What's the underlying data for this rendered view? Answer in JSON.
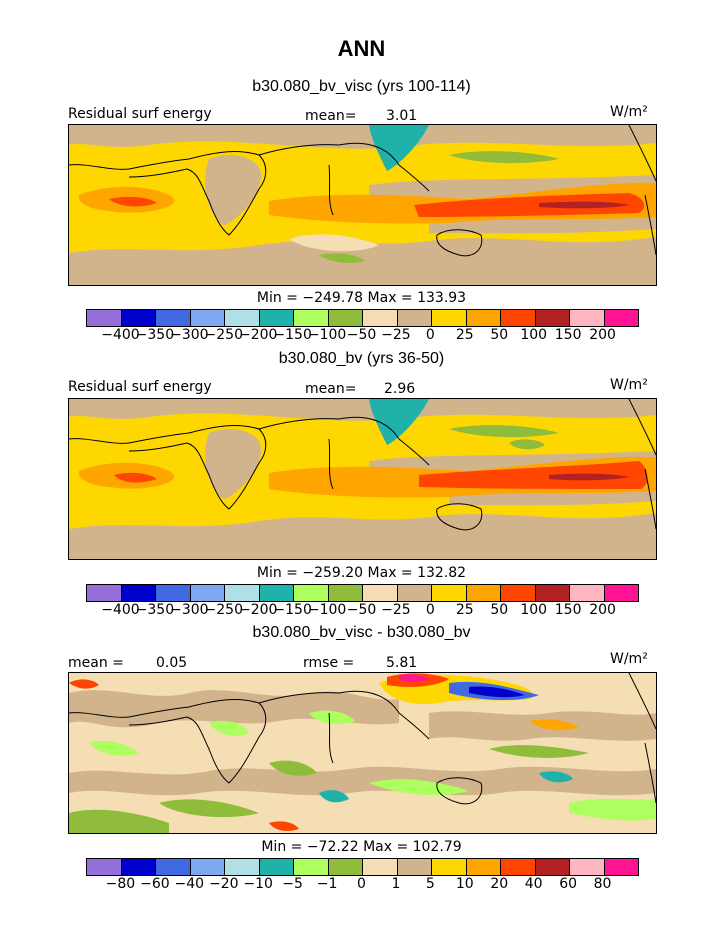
{
  "title": "ANN",
  "chart_data": [
    {
      "type": "heatmap",
      "title": "b30.080_bv_visc (yrs 100-114)",
      "field_label": "Residual surf energy",
      "units_label": "W/m²",
      "mean_label": "mean=",
      "mean_value": "3.01",
      "min_max_text": "Min = −249.78 Max = 133.93",
      "min": -249.78,
      "max": 133.93,
      "mean": 3.01,
      "colorbar": {
        "colors": [
          "#9370db",
          "#0000cd",
          "#4169e1",
          "#7fa8f0",
          "#aee0e6",
          "#20b2aa",
          "#adff5f",
          "#8fbc3b",
          "#f5deb3",
          "#d2b48c",
          "#ffd700",
          "#ffa500",
          "#ff4500",
          "#b22222",
          "#ffb6c1",
          "#ff1493"
        ],
        "tick_labels": [
          "−400",
          "−350",
          "−300",
          "−250",
          "−200",
          "−150",
          "−100",
          "−50",
          "−25",
          "0",
          "25",
          "50",
          "100",
          "150",
          "200"
        ]
      }
    },
    {
      "type": "heatmap",
      "title": "b30.080_bv (yrs 36-50)",
      "field_label": "Residual surf energy",
      "units_label": "W/m²",
      "mean_label": "mean=",
      "mean_value": "2.96",
      "min_max_text": "Min = −259.20 Max = 132.82",
      "min": -259.2,
      "max": 132.82,
      "mean": 2.96,
      "colorbar": {
        "colors": [
          "#9370db",
          "#0000cd",
          "#4169e1",
          "#7fa8f0",
          "#aee0e6",
          "#20b2aa",
          "#adff5f",
          "#8fbc3b",
          "#f5deb3",
          "#d2b48c",
          "#ffd700",
          "#ffa500",
          "#ff4500",
          "#b22222",
          "#ffb6c1",
          "#ff1493"
        ],
        "tick_labels": [
          "−400",
          "−350",
          "−300",
          "−250",
          "−200",
          "−150",
          "−100",
          "−50",
          "−25",
          "0",
          "25",
          "50",
          "100",
          "150",
          "200"
        ]
      }
    },
    {
      "type": "heatmap",
      "title": "b30.080_bv_visc - b30.080_bv",
      "field_label": "",
      "units_label": "W/m²",
      "mean_label": "mean =",
      "mean_value": "0.05",
      "rmse_label": "rmse =",
      "rmse_value": "5.81",
      "min_max_text": "Min = −72.22 Max = 102.79",
      "min": -72.22,
      "max": 102.79,
      "mean": 0.05,
      "rmse": 5.81,
      "colorbar": {
        "colors": [
          "#9370db",
          "#0000cd",
          "#4169e1",
          "#7fa8f0",
          "#aee0e6",
          "#20b2aa",
          "#adff5f",
          "#8fbc3b",
          "#f5deb3",
          "#d2b48c",
          "#ffd700",
          "#ffa500",
          "#ff4500",
          "#b22222",
          "#ffb6c1",
          "#ff1493"
        ],
        "tick_labels": [
          "−80",
          "−60",
          "−40",
          "−20",
          "−10",
          "−5",
          "−1",
          "0",
          "1",
          "5",
          "10",
          "20",
          "40",
          "60",
          "80"
        ]
      }
    }
  ]
}
